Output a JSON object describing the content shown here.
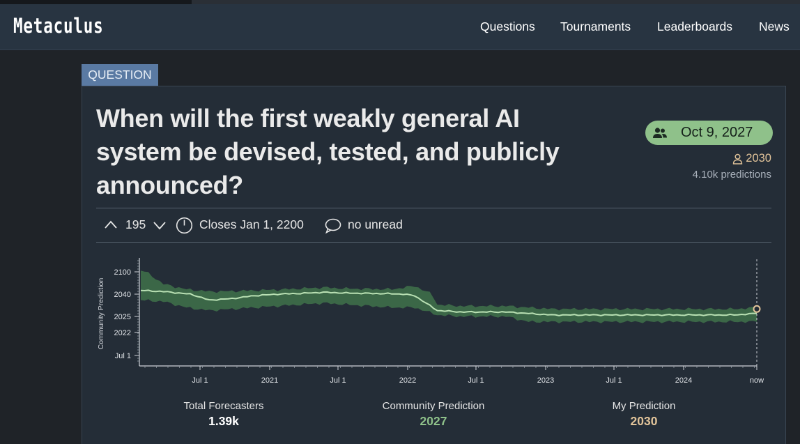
{
  "nav": {
    "logo": "Metaculus",
    "links": [
      "Questions",
      "Tournaments",
      "Leaderboards",
      "News"
    ]
  },
  "question": {
    "badge": "QUESTION",
    "title_lines": [
      "When will the first weakly general AI",
      "system be devised, tested, and publicly",
      "announced?"
    ],
    "community_prediction": "Oct 9, 2027",
    "my_prediction": "2030",
    "predictions_count": "4.10k predictions"
  },
  "toolbar": {
    "votes": "195",
    "closes": "Closes Jan 1, 2200",
    "comments": "no unread"
  },
  "icons": {
    "pill": "users-icon",
    "my_prediction": "user-icon",
    "upvote": "chevron-up-icon",
    "downvote": "chevron-down-icon",
    "clock": "clock-icon",
    "comment": "comment-icon"
  },
  "colors": {
    "community": "#8fc18a",
    "mine": "#e2c49a",
    "band": "#3d6a48",
    "line": "#b9e0b3"
  },
  "stats": {
    "total_forecasters_label": "Total Forecasters",
    "total_forecasters_value": "1.39k",
    "community_label": "Community Prediction",
    "community_value": "2027",
    "mine_label": "My Prediction",
    "mine_value": "2030"
  },
  "chart_data": {
    "type": "area",
    "ylabel": "Community Prediction",
    "y_tick_labels": [
      "2100",
      "2040",
      "2025",
      "2022",
      "Jul 1"
    ],
    "x_tick_labels": [
      "Jul 1",
      "2021",
      "Jul 1",
      "2022",
      "Jul 1",
      "2023",
      "Jul 1",
      "2024",
      "now"
    ],
    "x": [
      "2020-03",
      "2020-04",
      "2020-06",
      "2020-08",
      "2020-10",
      "2020-12",
      "2021-02",
      "2021-04",
      "2021-06",
      "2021-08",
      "2021-10",
      "2021-12",
      "2022-02",
      "2022-04",
      "2022-06",
      "2022-08",
      "2022-10",
      "2022-12",
      "2023-02",
      "2023-04",
      "2023-06",
      "2023-08",
      "2023-10",
      "2023-12",
      "2024-02",
      "2024-04",
      "2024-06",
      "now"
    ],
    "median": [
      2050,
      2047,
      2041,
      2036,
      2037,
      2039,
      2040,
      2042,
      2045,
      2043,
      2042,
      2041,
      2039,
      2029,
      2028,
      2028,
      2028,
      2027,
      2026,
      2026,
      2026,
      2026,
      2026,
      2026,
      2026,
      2026,
      2026,
      2027
    ],
    "lower": [
      2036,
      2035,
      2031,
      2029,
      2030,
      2031,
      2032,
      2033,
      2034,
      2033,
      2032,
      2031,
      2031,
      2026,
      2025,
      2025,
      2025,
      2024,
      2024,
      2024,
      2024,
      2024,
      2024,
      2024,
      2024,
      2024,
      2024,
      2024
    ],
    "upper": [
      2110,
      2067,
      2053,
      2047,
      2048,
      2050,
      2052,
      2055,
      2058,
      2055,
      2054,
      2053,
      2062,
      2033,
      2032,
      2032,
      2032,
      2031,
      2030,
      2030,
      2030,
      2030,
      2030,
      2030,
      2030,
      2030,
      2030,
      2031
    ],
    "my_prediction_marker": 2030,
    "grid": false
  }
}
